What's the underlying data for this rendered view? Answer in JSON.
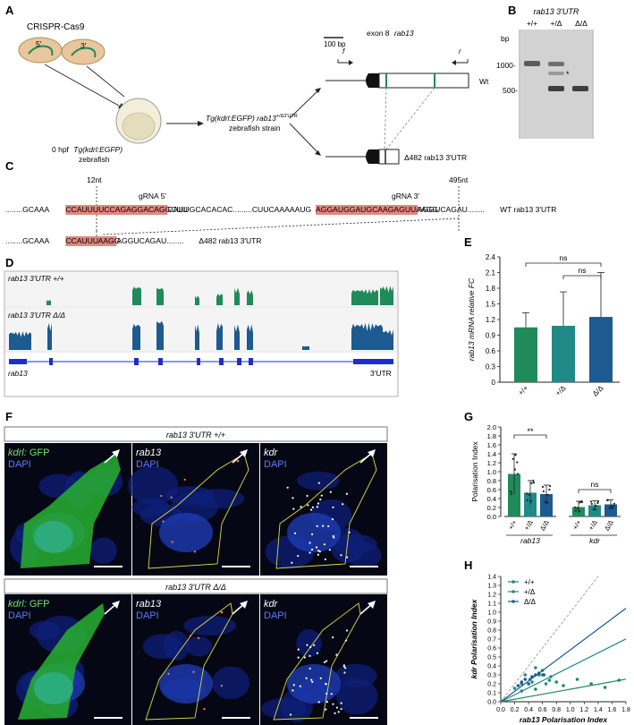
{
  "panel_labels": [
    "A",
    "B",
    "C",
    "D",
    "E",
    "F",
    "G",
    "H"
  ],
  "panelA": {
    "title": "CRISPR-Cas9",
    "guide_5": "5'",
    "guide_3": "3'",
    "embryo_stage": "0 hpf",
    "embryo_line": "Tg(kdrl:EGFP)",
    "embryo_suffix": "zebrafish",
    "strain_line1": "Tg(kdrl:EGFP) rab13",
    "strain_sup": "+/Δ3'UTR",
    "strain_line2": "zebrafish strain",
    "scale_bar": "100 bp",
    "exon_label": "exon 8",
    "gene": "rab13",
    "primer_f": "f",
    "primer_r": "r",
    "wt_label": "Wt",
    "del_label": "Δ482 rab13 3'UTR"
  },
  "panelB": {
    "title": "rab13 3'UTR",
    "lanes": [
      "+/+",
      "+/Δ",
      "Δ/Δ"
    ],
    "unit": "bp",
    "markers": [
      "1000-",
      "500-"
    ],
    "star": "*"
  },
  "panelC": {
    "pos_12": "12nt",
    "pos_495": "495nt",
    "grna5": "gRNA 5'",
    "grna3": "gRNA 3'",
    "wt_seq": [
      {
        "t": "........GCAAA",
        "h": false
      },
      {
        "t": "CCAUUUUCCAGAGGACAGGCUU",
        "h": true
      },
      {
        "t": "CAUUGCACACAC.........CUUCAAAAAUG",
        "h": false
      },
      {
        "t": "AGGAUGGAUGCAAGAGUUAAGG",
        "h": true
      },
      {
        "t": "AGGUCAGAU........",
        "h": false
      }
    ],
    "wt_label": "WT rab13 3'UTR",
    "del_seq": [
      {
        "t": "........GCAAA",
        "h": false
      },
      {
        "t": "CCAUUUU",
        "h": true
      },
      {
        "t": "AAGG",
        "h": true
      },
      {
        "t": "AGGUCAGAU........",
        "h": false
      }
    ],
    "del_label": "Δ482 rab13 3'UTR"
  },
  "panelD": {
    "track1": "rab13 3'UTR +/+",
    "track2": "rab13 3'UTR Δ/Δ",
    "gene": "rab13",
    "utr": "3'UTR"
  },
  "panelE": {
    "chart_data": {
      "type": "bar",
      "categories": [
        "+/+",
        "+/Δ",
        "Δ/Δ"
      ],
      "values": [
        1.05,
        1.08,
        1.25
      ],
      "errors": [
        0.28,
        0.65,
        0.85
      ],
      "colors": [
        "#1f8a5a",
        "#1f8a88",
        "#1c5a8f"
      ],
      "ylabel": "rab13 mRNA relative FC",
      "ylim": [
        0,
        2.4
      ],
      "yticks": [
        "0",
        "0.3",
        "0.6",
        "0.9",
        "1.2",
        "1.5",
        "1.8",
        "2.1",
        "2.4"
      ],
      "annotations": [
        "ns",
        "ns"
      ]
    }
  },
  "panelF": {
    "header_wt": "rab13 3'UTR +/+",
    "header_del": "rab13 3'UTR Δ/Δ",
    "ch1_a": "kdrl:",
    "ch1_b": " GFP",
    "dapi": "DAPI",
    "ch2": "rab13",
    "ch3": "kdr"
  },
  "panelG": {
    "chart_data": {
      "type": "bar",
      "groups": [
        "rab13",
        "kdr"
      ],
      "categories": [
        "+/+",
        "+/Δ",
        "Δ/Δ"
      ],
      "series": [
        {
          "name": "rab13",
          "values": [
            0.95,
            0.53,
            0.5
          ],
          "errors": [
            0.45,
            0.27,
            0.2
          ]
        },
        {
          "name": "kdr",
          "values": [
            0.21,
            0.25,
            0.27
          ],
          "errors": [
            0.13,
            0.1,
            0.1
          ]
        }
      ],
      "colors": [
        "#1f8a5a",
        "#1f8a88",
        "#1c5a8f"
      ],
      "ylabel": "Polarisation Index",
      "ylim": [
        0,
        2.0
      ],
      "yticks": [
        "0.0",
        "0.2",
        "0.4",
        "0.6",
        "0.8",
        "1.0",
        "1.2",
        "1.4",
        "1.6",
        "1.8",
        "2.0"
      ],
      "annotations": [
        "**",
        "ns"
      ]
    }
  },
  "panelH": {
    "chart_data": {
      "type": "scatter",
      "xlabel": "rab13 Polarisation Index",
      "ylabel": "kdr Polarisation Index",
      "xlim": [
        0,
        1.8
      ],
      "ylim": [
        0,
        1.4
      ],
      "xticks": [
        "0.0",
        "0.2",
        "0.4",
        "0.6",
        "0.8",
        "1.0",
        "1.2",
        "1.4",
        "1.6",
        "1.8"
      ],
      "yticks": [
        "0.0",
        "0.1",
        "0.2",
        "0.3",
        "0.4",
        "0.5",
        "0.6",
        "0.7",
        "0.8",
        "0.9",
        "1.0",
        "1.1",
        "1.2",
        "1.3",
        "1.4"
      ],
      "legend": [
        "+/+",
        "+/Δ",
        "Δ/Δ"
      ],
      "legend_position": "top-left",
      "colors": [
        "#1f8a5a",
        "#1f8a88",
        "#1c5a8f"
      ],
      "series": [
        {
          "name": "+/+",
          "slope": 0.14,
          "points": [
            [
              0.3,
              0.2
            ],
            [
              0.5,
              0.14
            ],
            [
              0.7,
              0.24
            ],
            [
              0.9,
              0.18
            ],
            [
              1.1,
              0.25
            ],
            [
              1.3,
              0.2
            ],
            [
              1.5,
              0.16
            ],
            [
              1.7,
              0.24
            ],
            [
              0.6,
              0.3
            ],
            [
              0.8,
              0.22
            ]
          ]
        },
        {
          "name": "+/Δ",
          "slope": 0.39,
          "points": [
            [
              0.2,
              0.15
            ],
            [
              0.35,
              0.3
            ],
            [
              0.45,
              0.22
            ],
            [
              0.55,
              0.3
            ],
            [
              0.65,
              0.2
            ],
            [
              0.3,
              0.12
            ],
            [
              0.6,
              0.35
            ],
            [
              0.42,
              0.25
            ],
            [
              0.5,
              0.38
            ],
            [
              0.72,
              0.28
            ]
          ]
        },
        {
          "name": "Δ/Δ",
          "slope": 0.58,
          "points": [
            [
              0.25,
              0.18
            ],
            [
              0.35,
              0.25
            ],
            [
              0.45,
              0.28
            ],
            [
              0.55,
              0.32
            ],
            [
              0.62,
              0.3
            ],
            [
              0.4,
              0.2
            ],
            [
              0.5,
              0.3
            ],
            [
              0.3,
              0.22
            ]
          ]
        }
      ],
      "identity_line": true
    }
  }
}
